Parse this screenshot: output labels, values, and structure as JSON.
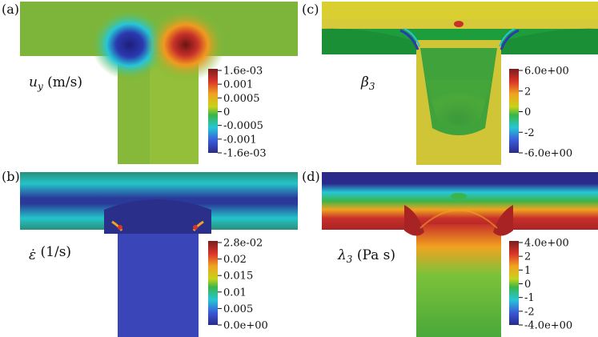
{
  "panels": [
    {
      "label": "(a)",
      "quantity": "u",
      "quantity_sub": "y",
      "quantity_unit": " (m/s)",
      "colorbar": {
        "ticks": [
          "1.6e-03",
          "0.001",
          "0.0005",
          "0",
          "-0.0005",
          "-0.001",
          "-1.6e-03"
        ]
      }
    },
    {
      "label": "(c)",
      "quantity": "β",
      "quantity_sub": "3",
      "quantity_unit": "",
      "colorbar": {
        "ticks": [
          "6.0e+00",
          "2",
          "0",
          "-2",
          "-6.0e+00"
        ]
      }
    },
    {
      "label": "(b)",
      "quantity": "ε̇",
      "quantity_sub": "",
      "quantity_unit": " (1/s)",
      "colorbar": {
        "ticks": [
          "2.8e-02",
          "0.02",
          "0.015",
          "0.01",
          "0.005",
          "0.0e+00"
        ]
      }
    },
    {
      "label": "(d)",
      "quantity": "λ",
      "quantity_sub": "3",
      "quantity_unit": " (Pa s)",
      "colorbar": {
        "ticks": [
          "4.0e+00",
          "2",
          "1",
          "0",
          "-1",
          "-2",
          "-4.0e+00"
        ]
      }
    }
  ],
  "colors": {
    "colormap": [
      "#2a2a8a",
      "#3a5bd8",
      "#27c6d6",
      "#3bb54a",
      "#c7d31a",
      "#f0a320",
      "#d9342a",
      "#7a1e1e"
    ]
  }
}
